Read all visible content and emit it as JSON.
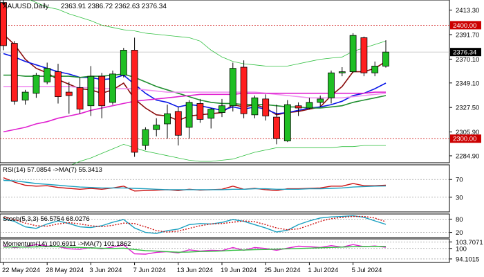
{
  "header": {
    "symbol": "XAUUSD,Daily",
    "ohlc": "2363.91 2386.72 2362.63 2376.34"
  },
  "colors": {
    "bull": "#1fbf24",
    "bear": "#ff1f1f",
    "ema_blue": "#0a18e8",
    "ema_darkred": "#8b0d0d",
    "ema_green": "#1f8f2f",
    "ema_magenta": "#e020d0",
    "ema_pink": "#f090f0",
    "bollinger": "#2fbf3f",
    "level_line": "#cc0000",
    "indicator_blue": "#1aa0c0",
    "indicator_red": "#cc1010",
    "grid_dash": "#888888"
  },
  "chart_data": [
    {
      "type": "candlestick",
      "title": "XAUUSD,Daily",
      "ylim": [
        2280,
        2421
      ],
      "yticks": [
        2413.3,
        2391.7,
        2370.1,
        2349.1,
        2327.5,
        2305.9,
        2284.9
      ],
      "ytick_labels": [
        "2413.30",
        "2391.70",
        "2370.10",
        "2349.10",
        "2327.50",
        "2305.90",
        "2284.90"
      ],
      "xtick_labels": [
        {
          "i": 0,
          "label": "22 May 2024"
        },
        {
          "i": 4,
          "label": "28 May 2024"
        },
        {
          "i": 8,
          "label": "3 Jun 2024"
        },
        {
          "i": 12,
          "label": "7 Jun 2024"
        },
        {
          "i": 16,
          "label": "13 Jun 2024"
        },
        {
          "i": 20,
          "label": "19 Jun 2024"
        },
        {
          "i": 24,
          "label": "25 Jun 2024"
        },
        {
          "i": 28,
          "label": "1 Jul 2024"
        },
        {
          "i": 32,
          "label": "5 Jul 2024"
        }
      ],
      "candles": [
        {
          "o": 2420,
          "h": 2425,
          "c": 2382,
          "l": 2378
        },
        {
          "o": 2384,
          "h": 2386,
          "c": 2333,
          "l": 2330
        },
        {
          "o": 2334,
          "h": 2343,
          "c": 2341,
          "l": 2330
        },
        {
          "o": 2340,
          "h": 2358,
          "c": 2356,
          "l": 2336
        },
        {
          "o": 2350,
          "h": 2367,
          "c": 2362,
          "l": 2348
        },
        {
          "o": 2359,
          "h": 2366,
          "c": 2337,
          "l": 2331
        },
        {
          "o": 2341,
          "h": 2350,
          "c": 2338,
          "l": 2322
        },
        {
          "o": 2345,
          "h": 2354,
          "c": 2326,
          "l": 2322
        },
        {
          "o": 2329,
          "h": 2364,
          "c": 2355,
          "l": 2320
        },
        {
          "o": 2355,
          "h": 2358,
          "c": 2329,
          "l": 2318
        },
        {
          "o": 2332,
          "h": 2360,
          "c": 2357,
          "l": 2330
        },
        {
          "o": 2356,
          "h": 2380,
          "c": 2378,
          "l": 2354
        },
        {
          "o": 2378,
          "h": 2389,
          "c": 2288,
          "l": 2284
        },
        {
          "o": 2294,
          "h": 2310,
          "c": 2308,
          "l": 2290
        },
        {
          "o": 2308,
          "h": 2318,
          "c": 2312,
          "l": 2302
        },
        {
          "o": 2313,
          "h": 2330,
          "c": 2322,
          "l": 2300
        },
        {
          "o": 2324,
          "h": 2328,
          "c": 2303,
          "l": 2294
        },
        {
          "o": 2310,
          "h": 2334,
          "c": 2332,
          "l": 2300
        },
        {
          "o": 2331,
          "h": 2335,
          "c": 2317,
          "l": 2314
        },
        {
          "o": 2318,
          "h": 2327,
          "c": 2326,
          "l": 2309
        },
        {
          "o": 2323,
          "h": 2335,
          "c": 2329,
          "l": 2319
        },
        {
          "o": 2329,
          "h": 2367,
          "c": 2362,
          "l": 2324
        },
        {
          "o": 2363,
          "h": 2369,
          "c": 2322,
          "l": 2318
        },
        {
          "o": 2321,
          "h": 2338,
          "c": 2336,
          "l": 2318
        },
        {
          "o": 2335,
          "h": 2339,
          "c": 2320,
          "l": 2316
        },
        {
          "o": 2319,
          "h": 2330,
          "c": 2300,
          "l": 2295
        },
        {
          "o": 2298,
          "h": 2334,
          "c": 2330,
          "l": 2297
        },
        {
          "o": 2329,
          "h": 2332,
          "c": 2327,
          "l": 2320
        },
        {
          "o": 2327,
          "h": 2336,
          "c": 2332,
          "l": 2326
        },
        {
          "o": 2332,
          "h": 2338,
          "c": 2335,
          "l": 2328
        },
        {
          "o": 2336,
          "h": 2360,
          "c": 2358,
          "l": 2331
        },
        {
          "o": 2358,
          "h": 2363,
          "c": 2359,
          "l": 2355
        },
        {
          "o": 2359,
          "h": 2393,
          "c": 2391,
          "l": 2358
        },
        {
          "o": 2389,
          "h": 2390,
          "c": 2358,
          "l": 2355
        },
        {
          "o": 2358,
          "h": 2368,
          "c": 2364,
          "l": 2355
        },
        {
          "o": 2363.91,
          "h": 2386.72,
          "c": 2376.34,
          "l": 2362.63
        }
      ],
      "overlays": [
        {
          "color_key": "bollinger",
          "values": [
            2430,
            2428,
            2424,
            2420,
            2416,
            2414,
            2410,
            2407,
            2404,
            2400,
            2398,
            2396,
            2395,
            2393,
            2392,
            2391,
            2390,
            2389,
            2386,
            2378,
            2372,
            2368,
            2366,
            2365,
            2364,
            2364,
            2364,
            2366,
            2368,
            2370,
            2371,
            2372,
            2377,
            2380,
            2383,
            2386
          ]
        },
        {
          "color_key": "bollinger",
          "values": [
            2256,
            2258,
            2262,
            2265,
            2269,
            2272,
            2276,
            2280,
            2283,
            2287,
            2291,
            2295,
            2292,
            2289,
            2287,
            2285,
            2283,
            2281,
            2280,
            2280,
            2281,
            2282,
            2285,
            2288,
            2290,
            2292,
            2292,
            2292,
            2292,
            2292,
            2292,
            2293,
            2293,
            2294,
            2294,
            2294
          ]
        },
        {
          "color_key": "ema_darkred",
          "values": [
            2392,
            2383,
            2370,
            2362,
            2358,
            2352,
            2348,
            2344,
            2343,
            2340,
            2343,
            2349,
            2335,
            2327,
            2321,
            2320,
            2316,
            2320,
            2321,
            2322,
            2323,
            2330,
            2328,
            2330,
            2327,
            2321,
            2323,
            2324,
            2326,
            2328,
            2338,
            2346,
            2359,
            2359,
            2362,
            2368
          ]
        },
        {
          "color_key": "ema_blue",
          "values": [
            2375,
            2372,
            2368,
            2365,
            2362,
            2359,
            2357,
            2354,
            2354,
            2352,
            2353,
            2356,
            2348,
            2340,
            2334,
            2332,
            2328,
            2330,
            2329,
            2327,
            2325,
            2328,
            2326,
            2328,
            2326,
            2322,
            2323,
            2325,
            2327,
            2328,
            2330,
            2333,
            2338,
            2340,
            2344,
            2349
          ]
        },
        {
          "color_key": "ema_green",
          "values": [
            2356,
            2356,
            2355,
            2355,
            2355,
            2355,
            2355,
            2354,
            2355,
            2355,
            2356,
            2357,
            2354,
            2350,
            2346,
            2343,
            2340,
            2337,
            2334,
            2332,
            2331,
            2331,
            2330,
            2330,
            2330,
            2329,
            2328,
            2328,
            2327,
            2327,
            2328,
            2329,
            2332,
            2334,
            2336,
            2338
          ]
        },
        {
          "color_key": "ema_pink",
          "values": [
            2346,
            2346,
            2346,
            2346,
            2346,
            2346,
            2346,
            2345,
            2345,
            2344,
            2344,
            2344,
            2344,
            2343,
            2342,
            2341,
            2341,
            2341,
            2341,
            2341,
            2341,
            2341,
            2341,
            2341,
            2340,
            2339,
            2338,
            2337,
            2336,
            2336,
            2336,
            2336,
            2337,
            2338,
            2339,
            2340
          ]
        },
        {
          "color_key": "ema_magenta",
          "values": [
            2306,
            2308,
            2310,
            2313,
            2315,
            2318,
            2320,
            2322,
            2325,
            2327,
            2329,
            2331,
            2333,
            2334,
            2335,
            2336,
            2337,
            2338,
            2339,
            2339,
            2339,
            2339,
            2340,
            2340,
            2340,
            2340,
            2340,
            2340,
            2340,
            2340,
            2340,
            2340,
            2340,
            2340,
            2341,
            2341
          ]
        }
      ],
      "levels": [
        {
          "value": 2400.0,
          "label": "2400.00"
        },
        {
          "value": 2300.0,
          "label": "2300.00"
        }
      ],
      "last_price": {
        "value": 2376.34,
        "label": "2376.34"
      }
    },
    {
      "type": "line",
      "title": "RSI(14) 57.0854 ->MA(7) 55.3413",
      "ylim": [
        0,
        100
      ],
      "yticks": [
        70,
        30
      ],
      "ytick_labels": [
        "70",
        "30"
      ],
      "series": [
        {
          "color_key": "indicator_red",
          "values": [
            74,
            64,
            57,
            55,
            56,
            52,
            50,
            48,
            50,
            48,
            51,
            55,
            44,
            45,
            46,
            47,
            45,
            48,
            46,
            47,
            48,
            55,
            48,
            50,
            47,
            45,
            49,
            49,
            50,
            51,
            55,
            55,
            61,
            56,
            56,
            57.0854
          ]
        },
        {
          "color_key": "indicator_blue",
          "values": [
            68,
            67,
            64,
            61,
            59,
            57,
            55,
            53,
            52,
            51,
            51,
            51,
            50,
            49,
            48,
            47,
            47,
            47,
            47,
            47,
            47,
            48,
            48,
            49,
            49,
            48,
            48,
            48,
            49,
            49,
            50,
            51,
            53,
            54,
            55,
            55.3413
          ]
        }
      ]
    },
    {
      "type": "line",
      "title": "Stoch(5,3,3) 56.5754 68.0276",
      "ylim": [
        0,
        100
      ],
      "yticks": [
        80,
        20
      ],
      "ytick_labels": [
        "80",
        "20"
      ],
      "series": [
        {
          "color_key": "indicator_blue",
          "values": [
            82,
            70,
            45,
            38,
            58,
            72,
            60,
            45,
            42,
            50,
            66,
            78,
            40,
            20,
            15,
            28,
            35,
            55,
            60,
            58,
            65,
            78,
            70,
            55,
            40,
            22,
            30,
            55,
            72,
            85,
            90,
            92,
            95,
            88,
            72,
            56.5754
          ]
        },
        {
          "color_key": "indicator_red",
          "values": [
            88,
            78,
            62,
            50,
            48,
            58,
            64,
            58,
            50,
            46,
            52,
            62,
            60,
            45,
            28,
            22,
            26,
            38,
            50,
            58,
            60,
            66,
            72,
            68,
            55,
            40,
            32,
            36,
            52,
            70,
            82,
            88,
            92,
            92,
            85,
            68.0276
          ]
        }
      ]
    },
    {
      "type": "line",
      "title": "Momentum(14) 100.6911 ->MA(7) 101.1862",
      "ylim": [
        92.5,
        105
      ],
      "yticks": [
        103.7071,
        100,
        94.1015
      ],
      "ytick_labels": [
        "103.7071",
        "100",
        "94.1015"
      ],
      "series": [
        {
          "color_key": "ema_magenta",
          "values": [
            101.5,
            100.5,
            101.0,
            102.2,
            101.4,
            101.0,
            99.8,
            99.5,
            100.5,
            99.8,
            100.8,
            102.0,
            97.0,
            96.8,
            97.8,
            98.2,
            97.5,
            99.2,
            98.5,
            99.0,
            98.8,
            100.5,
            99.0,
            100.5,
            100.0,
            99.0,
            100.2,
            101.3,
            101.0,
            100.6,
            101.6,
            100.8,
            102.2,
            101.0,
            101.4,
            100.6911
          ]
        },
        {
          "color_key": "bollinger",
          "values": [
            100.8,
            100.9,
            100.8,
            100.9,
            101.0,
            101.1,
            100.7,
            100.6,
            100.3,
            100.1,
            100.0,
            100.2,
            99.4,
            98.8,
            98.5,
            98.2,
            97.9,
            98.0,
            98.3,
            98.4,
            98.6,
            99.0,
            99.1,
            99.3,
            99.4,
            99.6,
            99.8,
            100.0,
            100.2,
            100.4,
            100.6,
            100.8,
            101.0,
            101.1,
            101.2,
            101.1862
          ]
        }
      ]
    }
  ]
}
